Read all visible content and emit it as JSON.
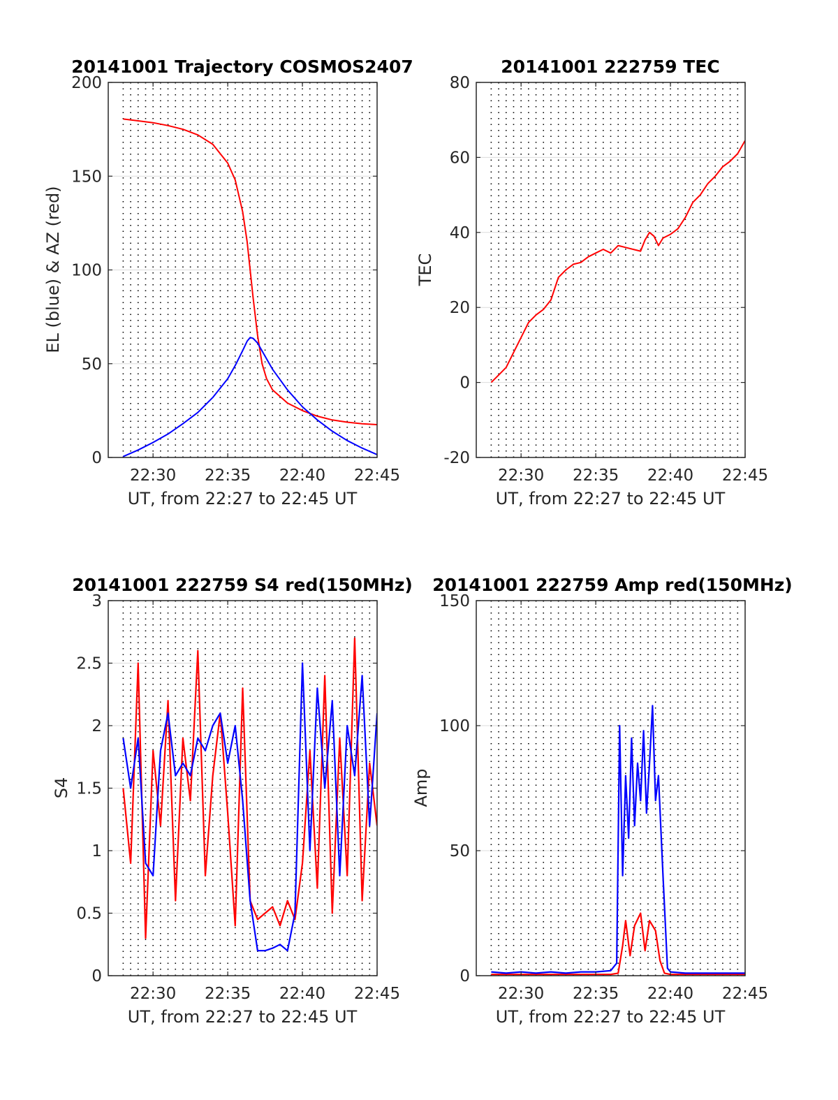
{
  "figure": {
    "background": "#ffffff",
    "grid_color": "#dcdcdc"
  },
  "chart_data": [
    {
      "id": "trajectory",
      "type": "line",
      "title": "20141001 Trajectory COSMOS2407",
      "xlabel": "UT, from 22:27 to 22:45 UT",
      "ylabel": "EL (blue) & AZ (red)",
      "x_unit": "minutes after 22:00 UT",
      "xlim": [
        27,
        45
      ],
      "ylim": [
        0,
        200
      ],
      "xticks": [
        30,
        35,
        40,
        45
      ],
      "xtick_labels": [
        "22:30",
        "22:35",
        "22:40",
        "22:45"
      ],
      "yticks": [
        0,
        50,
        100,
        150,
        200
      ],
      "ytick_labels": [
        "0",
        "50",
        "100",
        "150",
        "200"
      ],
      "grid": "horizontal solid, vertical dotted every 30 s",
      "series": [
        {
          "color": "#ff0000",
          "x": [
            28,
            29,
            30,
            31,
            32,
            33,
            34,
            35,
            35.5,
            36,
            36.3,
            36.5,
            36.7,
            37,
            37.3,
            37.6,
            38,
            39,
            40,
            41,
            42,
            43,
            44,
            45
          ],
          "values": [
            180.5,
            179.5,
            178.5,
            177,
            175,
            172,
            167,
            157,
            148,
            131,
            115,
            100,
            85,
            65,
            50,
            42,
            36,
            29,
            25,
            22,
            20,
            18.8,
            18,
            17.5
          ]
        },
        {
          "color": "#0000ff",
          "x": [
            28,
            29,
            30,
            31,
            32,
            33,
            34,
            35,
            35.5,
            36,
            36.3,
            36.5,
            36.7,
            37,
            37.5,
            38,
            39,
            40,
            41,
            42,
            43,
            44,
            45
          ],
          "values": [
            0.5,
            4,
            8,
            12.5,
            18,
            24,
            32,
            42,
            49,
            57,
            62,
            64,
            63.5,
            61,
            54,
            47,
            36,
            27,
            20,
            14,
            9,
            5,
            1.5
          ]
        }
      ]
    },
    {
      "id": "tec",
      "type": "line",
      "title": "20141001 222759 TEC",
      "xlabel": "UT, from 22:27 to 22:45 UT",
      "ylabel": "TEC",
      "x_unit": "minutes after 22:00 UT",
      "xlim": [
        27,
        45
      ],
      "ylim": [
        -20,
        80
      ],
      "xticks": [
        30,
        35,
        40,
        45
      ],
      "xtick_labels": [
        "22:30",
        "22:35",
        "22:40",
        "22:45"
      ],
      "yticks": [
        -20,
        0,
        20,
        40,
        60,
        80
      ],
      "ytick_labels": [
        "-20",
        "0",
        "20",
        "40",
        "60",
        "80"
      ],
      "grid": "horizontal solid, vertical dotted every 30 s",
      "series": [
        {
          "color": "#ff0000",
          "x": [
            28,
            28.5,
            29,
            29.5,
            30,
            30.5,
            31,
            31.5,
            32,
            32.5,
            33,
            33.5,
            34,
            34.5,
            35,
            35.5,
            36,
            36.5,
            37,
            37.5,
            38,
            38.3,
            38.6,
            38.9,
            39.2,
            39.5,
            40,
            40.5,
            41,
            41.5,
            42,
            42.5,
            43,
            43.5,
            44,
            44.5,
            45
          ],
          "values": [
            0,
            2,
            4,
            8,
            12,
            16,
            18,
            19.5,
            22,
            28,
            30,
            31.5,
            32,
            33.5,
            34.5,
            35.5,
            34.5,
            36.5,
            36,
            35.5,
            35,
            38,
            40,
            39,
            36.5,
            38.5,
            39.5,
            41,
            44,
            48,
            50,
            53,
            55,
            57.5,
            59,
            61,
            64.5
          ]
        }
      ]
    },
    {
      "id": "s4",
      "type": "line",
      "title": "20141001 222759 S4 red(150MHz)",
      "xlabel": "UT, from 22:27 to 22:45 UT",
      "ylabel": "S4",
      "x_unit": "minutes after 22:00 UT",
      "xlim": [
        27,
        45
      ],
      "ylim": [
        0,
        3
      ],
      "xticks": [
        30,
        35,
        40,
        45
      ],
      "xtick_labels": [
        "22:30",
        "22:35",
        "22:40",
        "22:45"
      ],
      "yticks": [
        0,
        0.5,
        1,
        1.5,
        2,
        2.5,
        3
      ],
      "ytick_labels": [
        "0",
        "0.5",
        "1",
        "1.5",
        "2",
        "2.5",
        "3"
      ],
      "grid": "horizontal solid, vertical dotted every 30 s",
      "series": [
        {
          "color": "#ff0000",
          "x": [
            28,
            28.5,
            29,
            29.5,
            30,
            30.5,
            31,
            31.5,
            32,
            32.5,
            33,
            33.5,
            34,
            34.5,
            35,
            35.5,
            36,
            36.5,
            37,
            37.5,
            38,
            38.5,
            39,
            39.5,
            40,
            40.5,
            41,
            41.5,
            42,
            42.5,
            43,
            43.5,
            44,
            44.5,
            45
          ],
          "values": [
            1.5,
            0.9,
            2.5,
            0.3,
            1.8,
            1.2,
            2.2,
            0.6,
            1.9,
            1.4,
            2.6,
            0.8,
            1.6,
            2.1,
            1.3,
            0.4,
            2.3,
            0.6,
            0.45,
            0.5,
            0.55,
            0.4,
            0.6,
            0.45,
            0.9,
            1.8,
            0.7,
            2.4,
            0.5,
            1.9,
            0.8,
            2.7,
            0.6,
            1.7,
            1.2
          ]
        },
        {
          "color": "#0000ff",
          "x": [
            28,
            28.5,
            29,
            29.5,
            30,
            30.5,
            31,
            31.5,
            32,
            32.5,
            33,
            33.5,
            34,
            34.5,
            35,
            35.5,
            36,
            36.5,
            37,
            37.5,
            38,
            38.5,
            39,
            39.5,
            40,
            40.5,
            41,
            41.5,
            42,
            42.5,
            43,
            43.5,
            44,
            44.5,
            45
          ],
          "values": [
            1.9,
            1.5,
            1.9,
            0.9,
            0.8,
            1.8,
            2.1,
            1.6,
            1.7,
            1.6,
            1.9,
            1.8,
            2.0,
            2.1,
            1.7,
            2.0,
            1.4,
            0.6,
            0.2,
            0.2,
            0.22,
            0.25,
            0.2,
            0.5,
            2.5,
            1.0,
            2.3,
            1.5,
            2.2,
            0.8,
            2.0,
            1.6,
            2.4,
            1.2,
            2.1
          ]
        }
      ]
    },
    {
      "id": "amp",
      "type": "line",
      "title": "20141001 222759 Amp red(150MHz)",
      "xlabel": "UT, from 22:27 to 22:45 UT",
      "ylabel": "Amp",
      "x_unit": "minutes after 22:00 UT",
      "xlim": [
        27,
        45
      ],
      "ylim": [
        0,
        150
      ],
      "xticks": [
        30,
        35,
        40,
        45
      ],
      "xtick_labels": [
        "22:30",
        "22:35",
        "22:40",
        "22:45"
      ],
      "yticks": [
        0,
        50,
        100,
        150
      ],
      "ytick_labels": [
        "0",
        "50",
        "100",
        "150"
      ],
      "grid": "horizontal solid, vertical dotted every 30 s",
      "series": [
        {
          "color": "#ff0000",
          "x": [
            28,
            30,
            32,
            34,
            36,
            36.5,
            36.8,
            37,
            37.3,
            37.6,
            38,
            38.3,
            38.6,
            39,
            39.3,
            39.6,
            40,
            42,
            44,
            45
          ],
          "values": [
            0.5,
            0.5,
            0.5,
            0.5,
            0.5,
            1,
            12,
            22,
            8,
            20,
            25,
            10,
            22,
            18,
            6,
            1,
            0.5,
            0.5,
            0.5,
            0.5
          ]
        },
        {
          "color": "#0000ff",
          "x": [
            28,
            29,
            30,
            31,
            32,
            33,
            34,
            35,
            36,
            36.4,
            36.6,
            36.8,
            37,
            37.2,
            37.4,
            37.6,
            37.8,
            38,
            38.2,
            38.4,
            38.6,
            38.8,
            39,
            39.2,
            39.5,
            39.8,
            40,
            41,
            42,
            43,
            44,
            45
          ],
          "values": [
            1.5,
            1,
            1.5,
            1,
            1.5,
            1,
            1.5,
            1.5,
            2,
            5,
            100,
            40,
            80,
            55,
            95,
            60,
            85,
            70,
            98,
            65,
            85,
            108,
            70,
            80,
            40,
            3,
            1.5,
            1,
            1,
            1,
            1,
            1
          ]
        }
      ]
    }
  ]
}
